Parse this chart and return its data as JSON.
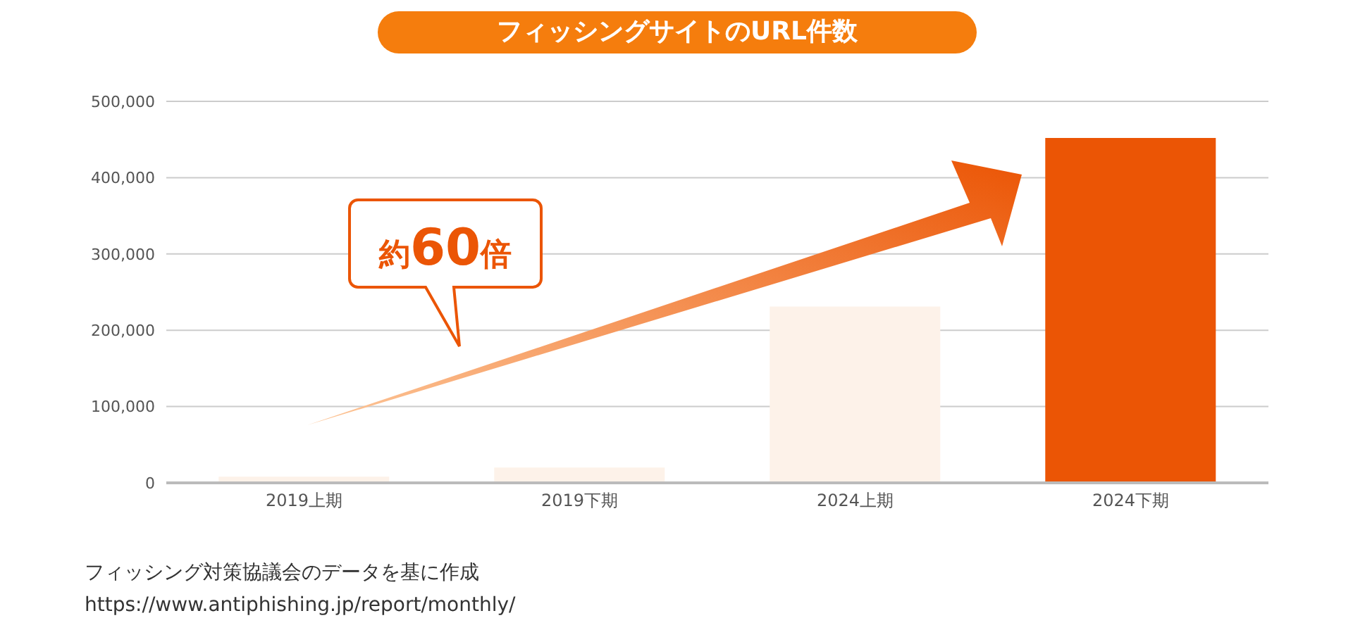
{
  "chart_data": {
    "type": "bar",
    "title": "フィッシングサイトのURL件数",
    "categories": [
      "2019上期",
      "2019下期",
      "2024上期",
      "2024下期"
    ],
    "values": [
      8000,
      20000,
      231000,
      452000
    ],
    "colors": [
      "#fdf2e9",
      "#fdf2e9",
      "#fdf2e9",
      "#eb5505"
    ],
    "ylim": [
      0,
      500000
    ],
    "yticks": [
      0,
      {
        "value": 100000,
        "label": "100,000"
      },
      {
        "value": 200000,
        "label": "200,000"
      },
      {
        "value": 300000,
        "label": "300,000"
      },
      {
        "value": 400000,
        "label": "400,000"
      },
      {
        "value": 500000,
        "label": "500,000"
      }
    ],
    "grid": "y",
    "annotations": [
      "約60倍",
      "フィッシング対策協議会のデータを基に作成",
      "https://www.antiphishing.jp/report/monthly/"
    ]
  }
}
